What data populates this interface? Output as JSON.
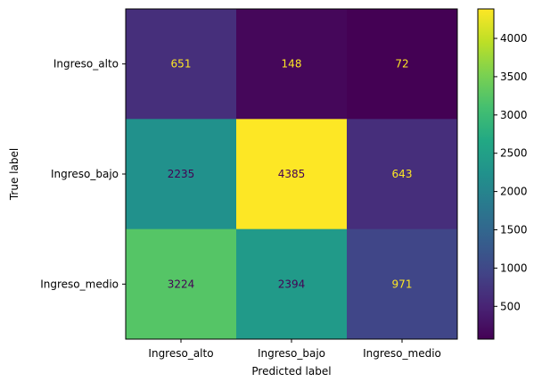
{
  "chart_data": {
    "type": "heatmap",
    "title": "",
    "xlabel": "Predicted label",
    "ylabel": "True label",
    "x_categories": [
      "Ingreso_alto",
      "Ingreso_bajo",
      "Ingreso_medio"
    ],
    "y_categories": [
      "Ingreso_alto",
      "Ingreso_bajo",
      "Ingreso_medio"
    ],
    "matrix": [
      [
        651,
        148,
        72
      ],
      [
        2235,
        4385,
        643
      ],
      [
        3224,
        2394,
        971
      ]
    ],
    "colormap": "viridis",
    "value_range": [
      72,
      4385
    ],
    "colorbar_ticks": [
      500,
      1000,
      1500,
      2000,
      2500,
      3000,
      3500,
      4000
    ],
    "text_color_light": "#fde725",
    "text_color_dark": "#440154",
    "grid": false,
    "legend": "colorbar-right"
  }
}
